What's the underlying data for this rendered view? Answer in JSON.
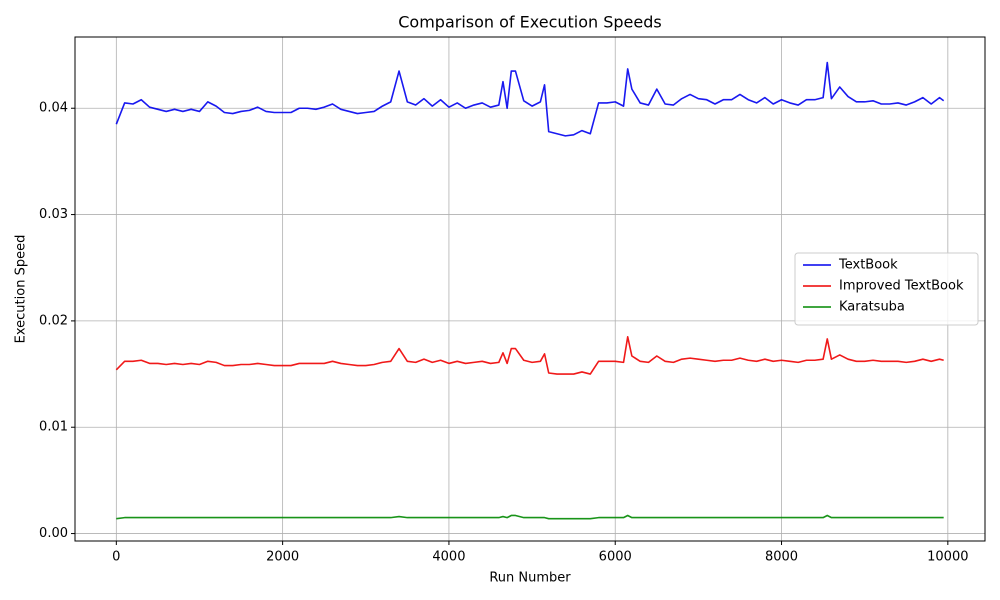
{
  "chart_data": {
    "type": "line",
    "title": "Comparison of Execution Speeds",
    "x_label": "Run Number",
    "y_label": "Execution Speed",
    "x": [
      0,
      100,
      200,
      300,
      400,
      500,
      600,
      700,
      800,
      900,
      1000,
      1100,
      1200,
      1300,
      1400,
      1500,
      1600,
      1700,
      1800,
      1900,
      2000,
      2100,
      2200,
      2300,
      2400,
      2500,
      2600,
      2700,
      2800,
      2900,
      3000,
      3100,
      3200,
      3300,
      3400,
      3500,
      3600,
      3700,
      3800,
      3900,
      4000,
      4100,
      4200,
      4300,
      4400,
      4500,
      4600,
      4650,
      4700,
      4750,
      4800,
      4900,
      5000,
      5100,
      5150,
      5200,
      5300,
      5400,
      5500,
      5600,
      5700,
      5800,
      5900,
      6000,
      6100,
      6150,
      6200,
      6300,
      6400,
      6500,
      6600,
      6700,
      6800,
      6900,
      7000,
      7100,
      7200,
      7300,
      7400,
      7500,
      7600,
      7700,
      7800,
      7900,
      8000,
      8100,
      8200,
      8300,
      8400,
      8500,
      8550,
      8600,
      8700,
      8800,
      8900,
      9000,
      9100,
      9200,
      9300,
      9400,
      9500,
      9600,
      9700,
      9800,
      9900,
      9950
    ],
    "series": [
      {
        "name": "TextBook",
        "color": "#0000ee",
        "values": [
          0.0385,
          0.0405,
          0.0404,
          0.0408,
          0.0401,
          0.0399,
          0.0397,
          0.0399,
          0.0397,
          0.0399,
          0.0397,
          0.0406,
          0.0402,
          0.0396,
          0.0395,
          0.0397,
          0.0398,
          0.0401,
          0.0397,
          0.0396,
          0.0396,
          0.0396,
          0.04,
          0.04,
          0.0399,
          0.0401,
          0.0404,
          0.0399,
          0.0397,
          0.0395,
          0.0396,
          0.0397,
          0.0402,
          0.0406,
          0.0435,
          0.0406,
          0.0403,
          0.0409,
          0.0402,
          0.0408,
          0.0401,
          0.0405,
          0.04,
          0.0403,
          0.0405,
          0.0401,
          0.0403,
          0.0425,
          0.04,
          0.0435,
          0.0435,
          0.0407,
          0.0402,
          0.0406,
          0.0422,
          0.0378,
          0.0376,
          0.0374,
          0.0375,
          0.0379,
          0.0376,
          0.0405,
          0.0405,
          0.0406,
          0.0402,
          0.0437,
          0.0418,
          0.0405,
          0.0403,
          0.0418,
          0.0404,
          0.0403,
          0.0409,
          0.0413,
          0.0409,
          0.0408,
          0.0404,
          0.0408,
          0.0408,
          0.0413,
          0.0408,
          0.0405,
          0.041,
          0.0404,
          0.0408,
          0.0405,
          0.0403,
          0.0408,
          0.0408,
          0.041,
          0.0443,
          0.0409,
          0.042,
          0.0411,
          0.0406,
          0.0406,
          0.0407,
          0.0404,
          0.0404,
          0.0405,
          0.0403,
          0.0406,
          0.041,
          0.0404,
          0.041,
          0.0407
        ]
      },
      {
        "name": "Improved TextBook",
        "color": "#ee0000",
        "values": [
          0.0154,
          0.0162,
          0.0162,
          0.0163,
          0.016,
          0.016,
          0.0159,
          0.016,
          0.0159,
          0.016,
          0.0159,
          0.0162,
          0.0161,
          0.0158,
          0.0158,
          0.0159,
          0.0159,
          0.016,
          0.0159,
          0.0158,
          0.0158,
          0.0158,
          0.016,
          0.016,
          0.016,
          0.016,
          0.0162,
          0.016,
          0.0159,
          0.0158,
          0.0158,
          0.0159,
          0.0161,
          0.0162,
          0.0174,
          0.0162,
          0.0161,
          0.0164,
          0.0161,
          0.0163,
          0.016,
          0.0162,
          0.016,
          0.0161,
          0.0162,
          0.016,
          0.0161,
          0.017,
          0.016,
          0.0174,
          0.0174,
          0.0163,
          0.0161,
          0.0162,
          0.0169,
          0.0151,
          0.015,
          0.015,
          0.015,
          0.0152,
          0.015,
          0.0162,
          0.0162,
          0.0162,
          0.0161,
          0.0185,
          0.0167,
          0.0162,
          0.0161,
          0.0167,
          0.0162,
          0.0161,
          0.0164,
          0.0165,
          0.0164,
          0.0163,
          0.0162,
          0.0163,
          0.0163,
          0.0165,
          0.0163,
          0.0162,
          0.0164,
          0.0162,
          0.0163,
          0.0162,
          0.0161,
          0.0163,
          0.0163,
          0.0164,
          0.0183,
          0.0164,
          0.0168,
          0.0164,
          0.0162,
          0.0162,
          0.0163,
          0.0162,
          0.0162,
          0.0162,
          0.0161,
          0.0162,
          0.0164,
          0.0162,
          0.0164,
          0.0163
        ]
      },
      {
        "name": "Karatsuba",
        "color": "#008800",
        "values": [
          0.0014,
          0.0015,
          0.0015,
          0.0015,
          0.0015,
          0.0015,
          0.0015,
          0.0015,
          0.0015,
          0.0015,
          0.0015,
          0.0015,
          0.0015,
          0.0015,
          0.0015,
          0.0015,
          0.0015,
          0.0015,
          0.0015,
          0.0015,
          0.0015,
          0.0015,
          0.0015,
          0.0015,
          0.0015,
          0.0015,
          0.0015,
          0.0015,
          0.0015,
          0.0015,
          0.0015,
          0.0015,
          0.0015,
          0.0015,
          0.0016,
          0.0015,
          0.0015,
          0.0015,
          0.0015,
          0.0015,
          0.0015,
          0.0015,
          0.0015,
          0.0015,
          0.0015,
          0.0015,
          0.0015,
          0.0016,
          0.0015,
          0.0017,
          0.0017,
          0.0015,
          0.0015,
          0.0015,
          0.0015,
          0.0014,
          0.0014,
          0.0014,
          0.0014,
          0.0014,
          0.0014,
          0.0015,
          0.0015,
          0.0015,
          0.0015,
          0.0017,
          0.0015,
          0.0015,
          0.0015,
          0.0015,
          0.0015,
          0.0015,
          0.0015,
          0.0015,
          0.0015,
          0.0015,
          0.0015,
          0.0015,
          0.0015,
          0.0015,
          0.0015,
          0.0015,
          0.0015,
          0.0015,
          0.0015,
          0.0015,
          0.0015,
          0.0015,
          0.0015,
          0.0015,
          0.0017,
          0.0015,
          0.0015,
          0.0015,
          0.0015,
          0.0015,
          0.0015,
          0.0015,
          0.0015,
          0.0015,
          0.0015,
          0.0015,
          0.0015,
          0.0015,
          0.0015,
          0.0015
        ]
      }
    ],
    "xlim": [
      -497,
      10447
    ],
    "xticks": [
      0,
      2000,
      4000,
      6000,
      8000,
      10000
    ],
    "ylim": [
      -0.0007,
      0.0467
    ],
    "yticks": [
      {
        "value": 0,
        "label": "0.00"
      },
      {
        "value": 0.01,
        "label": "0.01"
      },
      {
        "value": 0.02,
        "label": "0.02"
      },
      {
        "value": 0.03,
        "label": "0.03"
      },
      {
        "value": 0.04,
        "label": "0.04"
      }
    ],
    "grid": true,
    "legend": "center right"
  }
}
